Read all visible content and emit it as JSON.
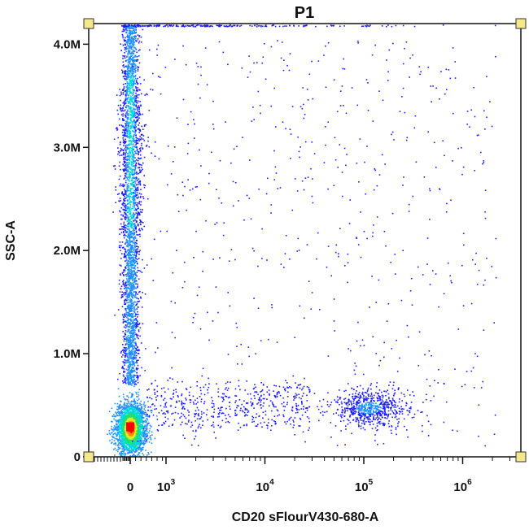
{
  "chart_data": {
    "type": "scatter",
    "subtype": "flow-cytometry-density-dot-plot",
    "title": "P1",
    "xlabel": "CD20 sFlourV430-680-A",
    "ylabel": "SSC-A",
    "x_scale": "biexponential",
    "ylim": [
      0,
      4200000
    ],
    "y_ticks": [
      {
        "value": 0,
        "label": "0"
      },
      {
        "value": 1000000,
        "label": "1.0M"
      },
      {
        "value": 2000000,
        "label": "2.0M"
      },
      {
        "value": 3000000,
        "label": "3.0M"
      },
      {
        "value": 4000000,
        "label": "4.0M"
      }
    ],
    "x_ticks": [
      {
        "value": 0,
        "base": "0",
        "exp": ""
      },
      {
        "value": 1000,
        "base": "10",
        "exp": "3"
      },
      {
        "value": 10000,
        "base": "10",
        "exp": "4"
      },
      {
        "value": 100000,
        "base": "10",
        "exp": "5"
      },
      {
        "value": 1000000,
        "base": "10",
        "exp": "6"
      }
    ],
    "populations": [
      {
        "label": "negative-dense-core",
        "x_center": 0,
        "y_center": 280000,
        "relative_events": 0.42
      },
      {
        "label": "negative-high-SSC",
        "x_center": 0,
        "y_center": 2800000,
        "relative_events": 0.38
      },
      {
        "label": "CD20-positive",
        "x_center": 110000,
        "y_center": 480000,
        "relative_events": 0.11
      },
      {
        "label": "scattered",
        "x_center": 20000,
        "y_center": 1500000,
        "relative_events": 0.09
      }
    ],
    "density_colors": [
      "#1b1bff",
      "#1f8fff",
      "#00d8d8",
      "#20e070",
      "#d8f020",
      "#ff8c00",
      "#ff0000"
    ],
    "gate_handle_color": "#f5e88a",
    "grid": false,
    "legend": "none"
  }
}
